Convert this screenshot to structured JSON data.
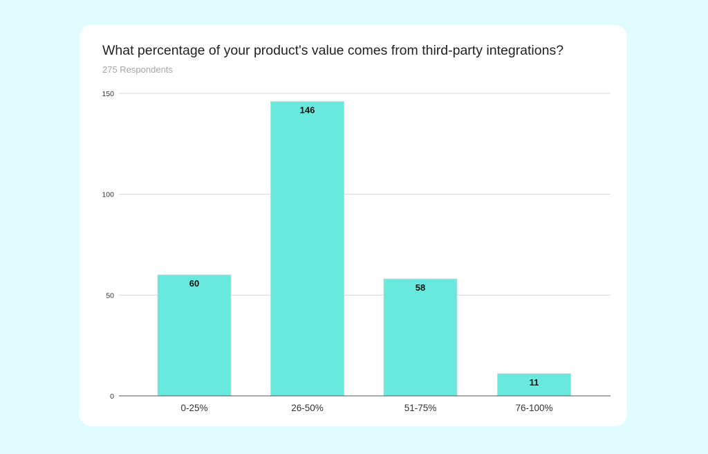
{
  "chart_data": {
    "type": "bar",
    "title": "What percentage of your product's value comes from third-party integrations?",
    "subtitle": "275 Respondents",
    "categories": [
      "0-25%",
      "26-50%",
      "51-75%",
      "76-100%"
    ],
    "values": [
      60,
      146,
      58,
      11
    ],
    "data_labels": [
      "60",
      "146",
      "58",
      "11"
    ],
    "ylim": [
      0,
      150
    ],
    "yticks": [
      0,
      50,
      100,
      150
    ],
    "grid": true,
    "legend": "none",
    "colors": {
      "bar": "#69e9de",
      "background": "#e0fcfc",
      "card": "#ffffff"
    }
  }
}
